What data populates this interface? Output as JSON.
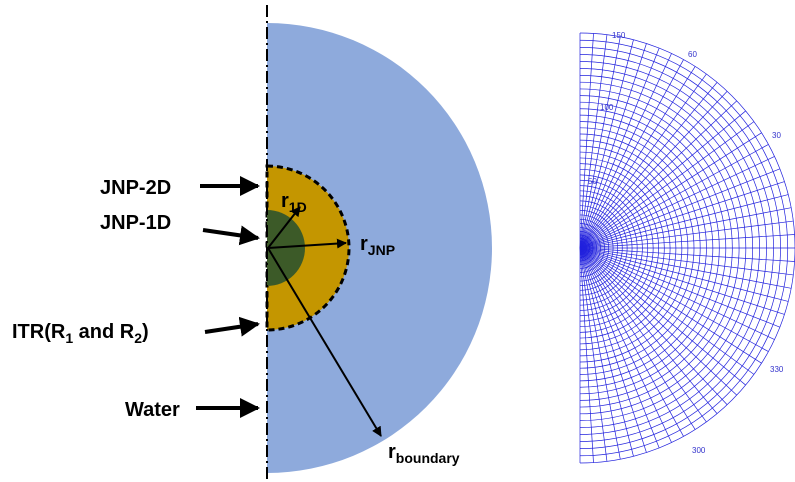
{
  "labels": {
    "jnp2d": "JNP-2D",
    "jnp1d": "JNP-1D",
    "itr": [
      "ITR(R",
      "1",
      " and R",
      "2",
      ")"
    ],
    "water": "Water"
  },
  "radii": {
    "r1d": [
      "r",
      "1D"
    ],
    "rjnp": [
      "r",
      "JNP"
    ],
    "rboundary": [
      "r",
      "boundary"
    ]
  },
  "mesh": {
    "radial_labels": [
      "150",
      "100",
      "50"
    ],
    "angle_labels": [
      "60",
      "30",
      "330",
      "300"
    ]
  }
}
